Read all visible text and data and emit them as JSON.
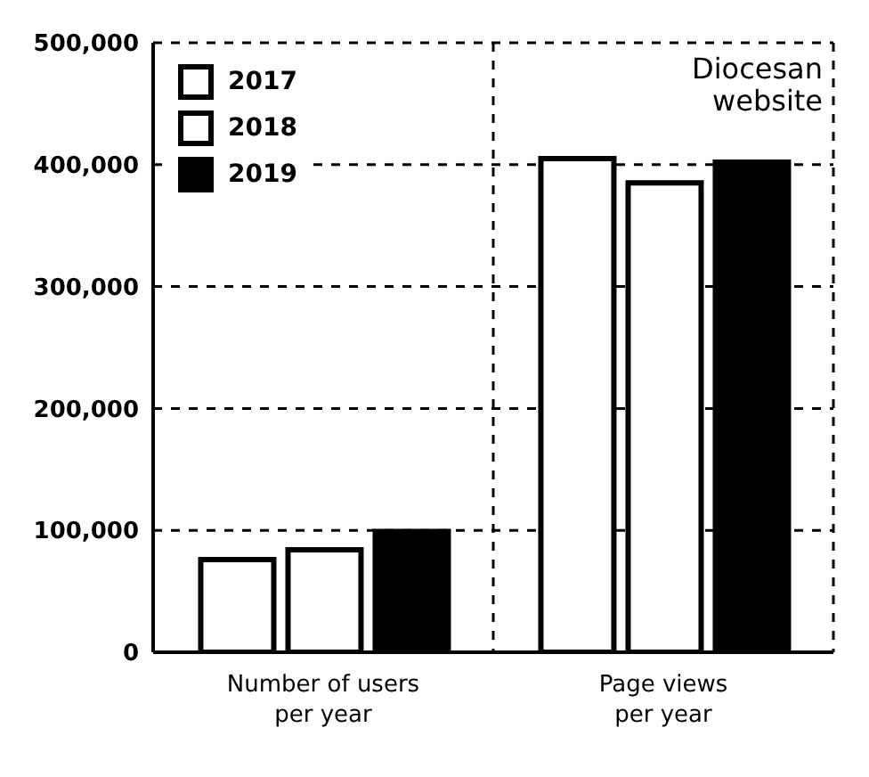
{
  "chart_data": {
    "type": "bar",
    "title": "Diocesan website",
    "categories": [
      "Number of users per year",
      "Page views per year"
    ],
    "series": [
      {
        "name": "2017",
        "color": "#ffffff",
        "values": [
          76000,
          405000
        ]
      },
      {
        "name": "2018",
        "color": "#ffffff",
        "values": [
          84000,
          385000
        ]
      },
      {
        "name": "2019",
        "color": "#000000",
        "values": [
          99000,
          402000
        ]
      }
    ],
    "ylim": [
      0,
      500000
    ],
    "yticks": [
      0,
      {
        "value": 100000,
        "label": "100,000"
      },
      {
        "value": 200000,
        "label": "200,000"
      },
      {
        "value": 300000,
        "label": "300,000"
      },
      {
        "value": 400000,
        "label": "400,000"
      },
      {
        "value": 500000,
        "label": "500,000"
      }
    ],
    "grid": true,
    "legend": "top left"
  }
}
